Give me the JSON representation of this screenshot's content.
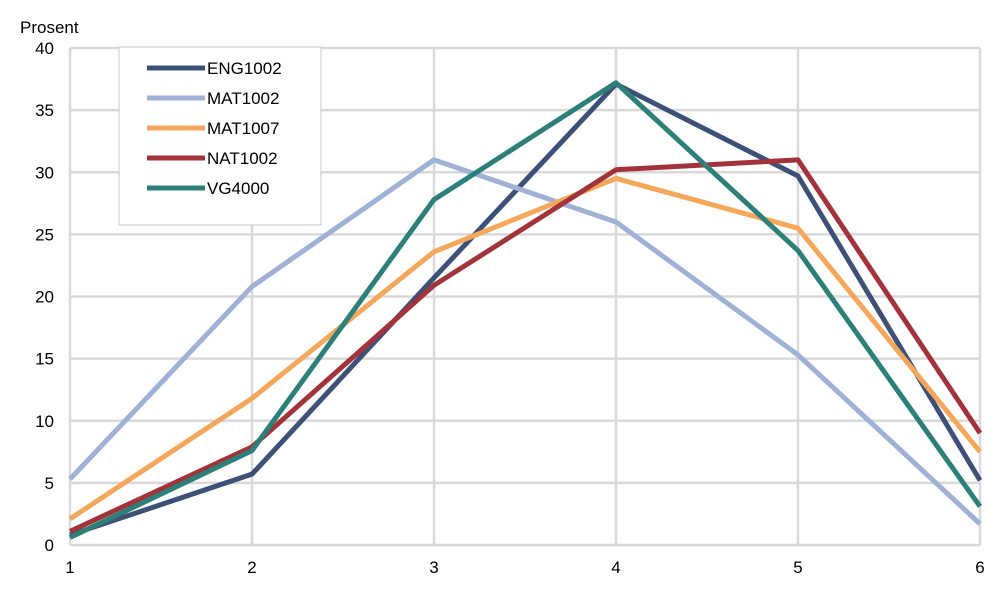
{
  "chart_data": {
    "type": "line",
    "ylabel": "Prosent",
    "xlabel": "",
    "title": "",
    "x": [
      1,
      2,
      3,
      4,
      5,
      6
    ],
    "xlim": [
      1,
      6
    ],
    "ylim": [
      0,
      40
    ],
    "yticks": [
      0,
      5,
      10,
      15,
      20,
      25,
      30,
      35,
      40
    ],
    "grid": true,
    "legend_position": "top-left",
    "series": [
      {
        "name": "ENG1002",
        "color": "#3c5078",
        "values": [
          0.8,
          5.7,
          21.5,
          37.1,
          29.7,
          5.2
        ]
      },
      {
        "name": "MAT1002",
        "color": "#9fb1d5",
        "values": [
          5.3,
          20.8,
          31.0,
          26.0,
          15.3,
          1.7
        ]
      },
      {
        "name": "MAT1007",
        "color": "#f5a75b",
        "values": [
          2.1,
          11.8,
          23.6,
          29.5,
          25.5,
          7.5
        ]
      },
      {
        "name": "NAT1002",
        "color": "#a3333a",
        "values": [
          1.1,
          7.9,
          20.9,
          30.2,
          31.0,
          9.0
        ]
      },
      {
        "name": "VG4000",
        "color": "#2d8079",
        "values": [
          0.6,
          7.6,
          27.8,
          37.2,
          23.7,
          3.1
        ]
      }
    ]
  }
}
